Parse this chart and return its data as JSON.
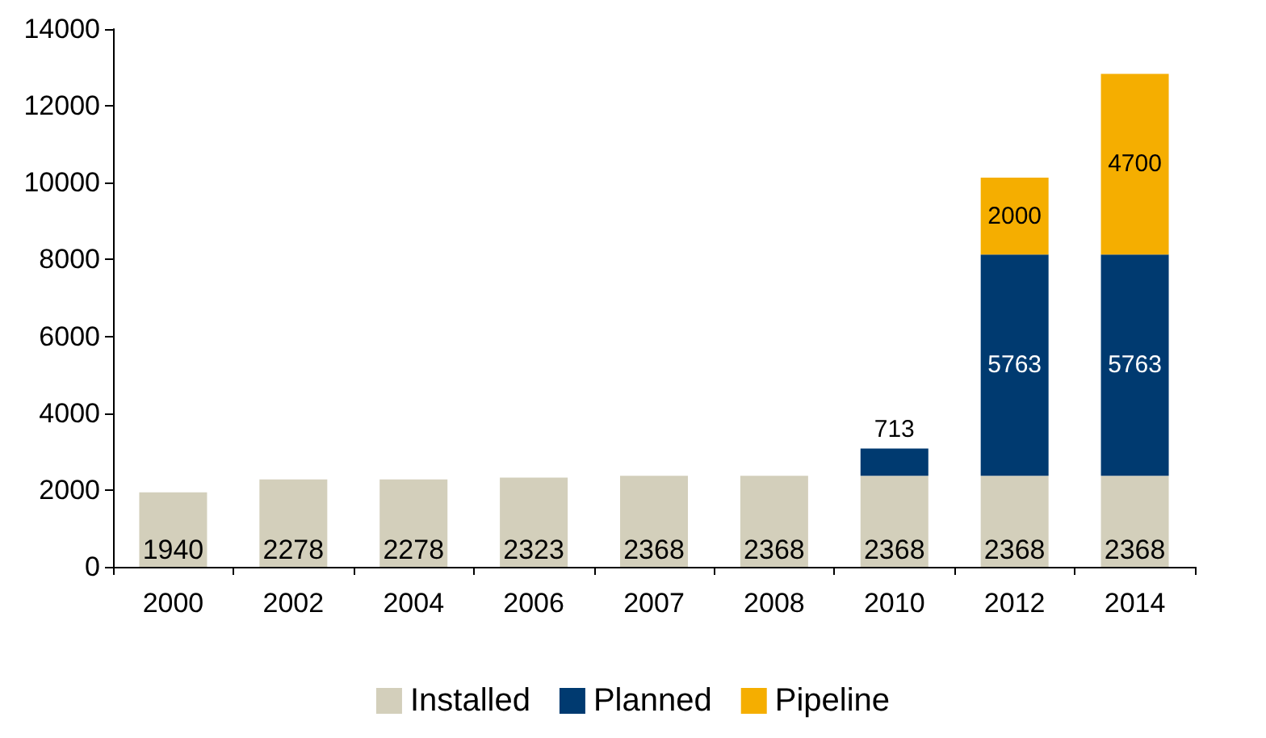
{
  "chart_data": {
    "type": "bar",
    "stacked": true,
    "categories": [
      "2000",
      "2002",
      "2004",
      "2006",
      "2007",
      "2008",
      "2010",
      "2012",
      "2014"
    ],
    "series": [
      {
        "name": "Installed",
        "color": "#d3cfbb",
        "values": [
          1940,
          2278,
          2278,
          2323,
          2368,
          2368,
          2368,
          2368,
          2368
        ]
      },
      {
        "name": "Planned",
        "color": "#003a70",
        "values": [
          null,
          null,
          null,
          null,
          null,
          null,
          713,
          5763,
          5763
        ]
      },
      {
        "name": "Pipeline",
        "color": "#f5ae00",
        "values": [
          null,
          null,
          null,
          null,
          null,
          null,
          null,
          2000,
          4700
        ]
      }
    ],
    "ylim": [
      0,
      14000
    ],
    "yticks": [
      0,
      2000,
      4000,
      6000,
      8000,
      10000,
      12000,
      14000
    ],
    "grid": false,
    "legend": "bottom",
    "data_labels": true
  }
}
